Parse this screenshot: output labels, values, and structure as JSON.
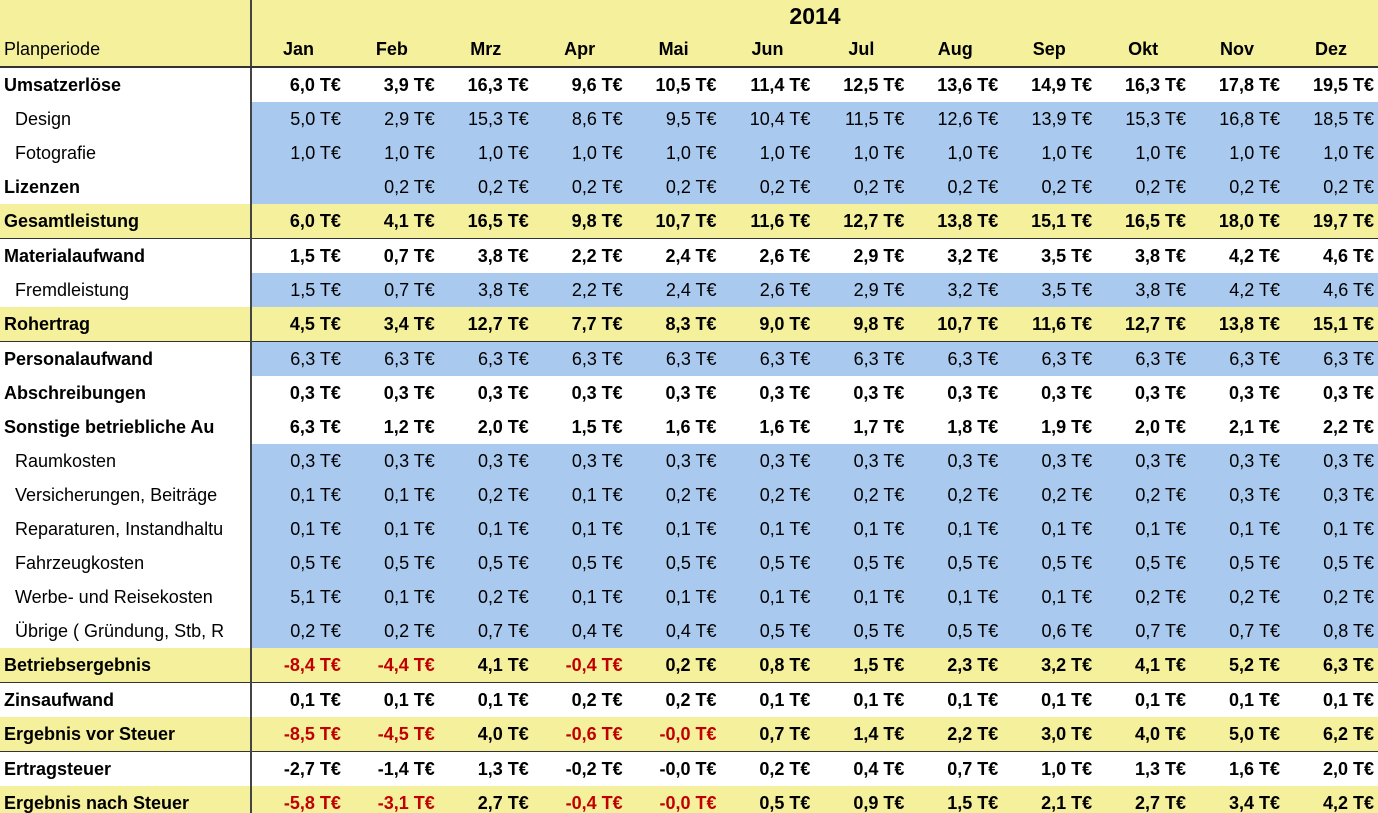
{
  "table": {
    "year": "2014",
    "header_label": "Planperiode",
    "months": [
      "Jan",
      "Feb",
      "Mrz",
      "Apr",
      "Mai",
      "Jun",
      "Jul",
      "Aug",
      "Sep",
      "Okt",
      "Nov",
      "Dez"
    ],
    "rows": [
      {
        "label": "Umsatzerlöse",
        "style": "bold",
        "cells": [
          "6,0 T€",
          "3,9 T€",
          "16,3 T€",
          "9,6 T€",
          "10,5 T€",
          "11,4 T€",
          "12,5 T€",
          "13,6 T€",
          "14,9 T€",
          "16,3 T€",
          "17,8 T€",
          "19,5 T€"
        ]
      },
      {
        "label": "Design",
        "style": "indent",
        "cells": [
          "5,0 T€",
          "2,9 T€",
          "15,3 T€",
          "8,6 T€",
          "9,5 T€",
          "10,4 T€",
          "11,5 T€",
          "12,6 T€",
          "13,9 T€",
          "15,3 T€",
          "16,8 T€",
          "18,5 T€"
        ]
      },
      {
        "label": "Fotografie",
        "style": "indent",
        "cells": [
          "1,0 T€",
          "1,0 T€",
          "1,0 T€",
          "1,0 T€",
          "1,0 T€",
          "1,0 T€",
          "1,0 T€",
          "1,0 T€",
          "1,0 T€",
          "1,0 T€",
          "1,0 T€",
          "1,0 T€"
        ]
      },
      {
        "label": "Lizenzen",
        "style": "mixed",
        "cells": [
          null,
          "0,2 T€",
          "0,2 T€",
          "0,2 T€",
          "0,2 T€",
          "0,2 T€",
          "0,2 T€",
          "0,2 T€",
          "0,2 T€",
          "0,2 T€",
          "0,2 T€",
          "0,2 T€"
        ]
      },
      {
        "label": "Gesamtleistung",
        "style": "total",
        "cells": [
          "6,0 T€",
          "4,1 T€",
          "16,5 T€",
          "9,8 T€",
          "10,7 T€",
          "11,6 T€",
          "12,7 T€",
          "13,8 T€",
          "15,1 T€",
          "16,5 T€",
          "18,0 T€",
          "19,7 T€"
        ]
      },
      {
        "label": "Materialaufwand",
        "style": "bold",
        "cells": [
          "1,5 T€",
          "0,7 T€",
          "3,8 T€",
          "2,2 T€",
          "2,4 T€",
          "2,6 T€",
          "2,9 T€",
          "3,2 T€",
          "3,5 T€",
          "3,8 T€",
          "4,2 T€",
          "4,6 T€"
        ]
      },
      {
        "label": "Fremdleistung",
        "style": "indent",
        "cells": [
          "1,5 T€",
          "0,7 T€",
          "3,8 T€",
          "2,2 T€",
          "2,4 T€",
          "2,6 T€",
          "2,9 T€",
          "3,2 T€",
          "3,5 T€",
          "3,8 T€",
          "4,2 T€",
          "4,6 T€"
        ]
      },
      {
        "label": "Rohertrag",
        "style": "total",
        "cells": [
          "4,5 T€",
          "3,4 T€",
          "12,7 T€",
          "7,7 T€",
          "8,3 T€",
          "9,0 T€",
          "9,8 T€",
          "10,7 T€",
          "11,6 T€",
          "12,7 T€",
          "13,8 T€",
          "15,1 T€"
        ]
      },
      {
        "label": "Personalaufwand",
        "style": "mixed",
        "cells": [
          "6,3 T€",
          "6,3 T€",
          "6,3 T€",
          "6,3 T€",
          "6,3 T€",
          "6,3 T€",
          "6,3 T€",
          "6,3 T€",
          "6,3 T€",
          "6,3 T€",
          "6,3 T€",
          "6,3 T€"
        ]
      },
      {
        "label": "Abschreibungen",
        "style": "bold",
        "cells": [
          "0,3 T€",
          "0,3 T€",
          "0,3 T€",
          "0,3 T€",
          "0,3 T€",
          "0,3 T€",
          "0,3 T€",
          "0,3 T€",
          "0,3 T€",
          "0,3 T€",
          "0,3 T€",
          "0,3 T€"
        ]
      },
      {
        "label": "Sonstige betriebliche Au",
        "style": "bold",
        "cells": [
          "6,3 T€",
          "1,2 T€",
          "2,0 T€",
          "1,5 T€",
          "1,6 T€",
          "1,6 T€",
          "1,7 T€",
          "1,8 T€",
          "1,9 T€",
          "2,0 T€",
          "2,1 T€",
          "2,2 T€"
        ]
      },
      {
        "label": "Raumkosten",
        "style": "indent",
        "cells": [
          "0,3 T€",
          "0,3 T€",
          "0,3 T€",
          "0,3 T€",
          "0,3 T€",
          "0,3 T€",
          "0,3 T€",
          "0,3 T€",
          "0,3 T€",
          "0,3 T€",
          "0,3 T€",
          "0,3 T€"
        ]
      },
      {
        "label": "Versicherungen, Beiträge",
        "style": "indent",
        "cells": [
          "0,1 T€",
          "0,1 T€",
          "0,2 T€",
          "0,1 T€",
          "0,2 T€",
          "0,2 T€",
          "0,2 T€",
          "0,2 T€",
          "0,2 T€",
          "0,2 T€",
          "0,3 T€",
          "0,3 T€"
        ]
      },
      {
        "label": "Reparaturen, Instandhaltu",
        "style": "indent",
        "cells": [
          "0,1 T€",
          "0,1 T€",
          "0,1 T€",
          "0,1 T€",
          "0,1 T€",
          "0,1 T€",
          "0,1 T€",
          "0,1 T€",
          "0,1 T€",
          "0,1 T€",
          "0,1 T€",
          "0,1 T€"
        ]
      },
      {
        "label": "Fahrzeugkosten",
        "style": "indent",
        "cells": [
          "0,5 T€",
          "0,5 T€",
          "0,5 T€",
          "0,5 T€",
          "0,5 T€",
          "0,5 T€",
          "0,5 T€",
          "0,5 T€",
          "0,5 T€",
          "0,5 T€",
          "0,5 T€",
          "0,5 T€"
        ]
      },
      {
        "label": "Werbe- und Reisekosten",
        "style": "indent",
        "cells": [
          "5,1 T€",
          "0,1 T€",
          "0,2 T€",
          "0,1 T€",
          "0,1 T€",
          "0,1 T€",
          "0,1 T€",
          "0,1 T€",
          "0,1 T€",
          "0,2 T€",
          "0,2 T€",
          "0,2 T€"
        ]
      },
      {
        "label": "Übrige ( Gründung, Stb, R",
        "style": "indent",
        "cells": [
          "0,2 T€",
          "0,2 T€",
          "0,7 T€",
          "0,4 T€",
          "0,4 T€",
          "0,5 T€",
          "0,5 T€",
          "0,5 T€",
          "0,6 T€",
          "0,7 T€",
          "0,7 T€",
          "0,8 T€"
        ]
      },
      {
        "label": "Betriebsergebnis",
        "style": "total",
        "cells": [
          "-8,4 T€",
          "-4,4 T€",
          "4,1 T€",
          "-0,4 T€",
          "0,2 T€",
          "0,8 T€",
          "1,5 T€",
          "2,3 T€",
          "3,2 T€",
          "4,1 T€",
          "5,2 T€",
          "6,3 T€"
        ]
      },
      {
        "label": "Zinsaufwand",
        "style": "bold",
        "cells": [
          "0,1 T€",
          "0,1 T€",
          "0,1 T€",
          "0,2 T€",
          "0,2 T€",
          "0,1 T€",
          "0,1 T€",
          "0,1 T€",
          "0,1 T€",
          "0,1 T€",
          "0,1 T€",
          "0,1 T€"
        ]
      },
      {
        "label": "Ergebnis vor Steuer",
        "style": "total",
        "cells": [
          "-8,5 T€",
          "-4,5 T€",
          "4,0 T€",
          "-0,6 T€",
          "-0,0 T€",
          "0,7 T€",
          "1,4 T€",
          "2,2 T€",
          "3,0 T€",
          "4,0 T€",
          "5,0 T€",
          "6,2 T€"
        ]
      },
      {
        "label": "Ertragsteuer",
        "style": "bold",
        "cells": [
          "-2,7 T€",
          "-1,4 T€",
          "1,3 T€",
          "-0,2 T€",
          "-0,0 T€",
          "0,2 T€",
          "0,4 T€",
          "0,7 T€",
          "1,0 T€",
          "1,3 T€",
          "1,6 T€",
          "2,0 T€"
        ]
      },
      {
        "label": "Ergebnis nach Steuer",
        "style": "total",
        "cells": [
          "-5,8 T€",
          "-3,1 T€",
          "2,7 T€",
          "-0,4 T€",
          "-0,0 T€",
          "0,5 T€",
          "0,9 T€",
          "1,5 T€",
          "2,1 T€",
          "2,7 T€",
          "3,4 T€",
          "4,2 T€"
        ]
      }
    ]
  }
}
